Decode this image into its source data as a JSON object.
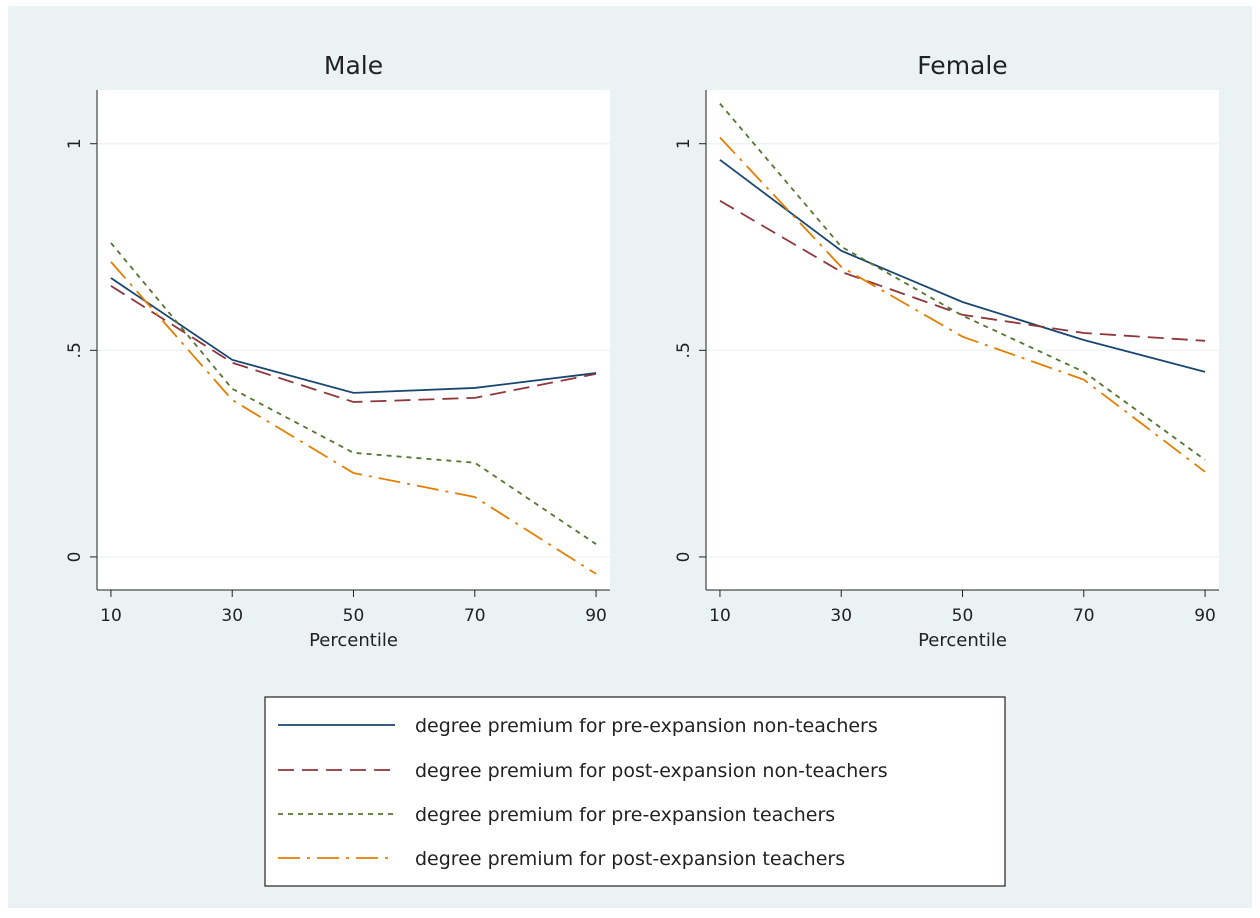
{
  "chart_data": [
    {
      "type": "line",
      "title": "Male",
      "x_label": "Percentile",
      "x": [
        10,
        30,
        50,
        70,
        90
      ],
      "xlim": [
        7.7,
        92.3
      ],
      "xticks": [
        10,
        30,
        50,
        70,
        90
      ],
      "ylim": [
        -0.08,
        1.13
      ],
      "yticks": [
        0,
        {
          "value": 0.5,
          "label": ".5"
        },
        1
      ],
      "grid": true,
      "series": [
        {
          "name": "degree premium for pre-expansion non-teachers",
          "color": "#1a476f",
          "dash": "solid",
          "values": [
            0.675,
            0.477,
            0.397,
            0.409,
            0.445
          ]
        },
        {
          "name": "degree premium for post-expansion non-teachers",
          "color": "#90353b",
          "dash": "longdash",
          "values": [
            0.656,
            0.47,
            0.375,
            0.385,
            0.443
          ]
        },
        {
          "name": "degree premium for pre-expansion teachers",
          "color": "#55752f",
          "dash": "shortdash",
          "values": [
            0.76,
            0.407,
            0.252,
            0.228,
            0.031
          ]
        },
        {
          "name": "degree premium for post-expansion teachers",
          "color": "#e37e00",
          "dash": "longdashdot",
          "values": [
            0.714,
            0.38,
            0.203,
            0.145,
            -0.041
          ]
        }
      ]
    },
    {
      "type": "line",
      "title": "Female",
      "x_label": "Percentile",
      "x": [
        10,
        30,
        50,
        70,
        90
      ],
      "xlim": [
        7.7,
        92.3
      ],
      "xticks": [
        10,
        30,
        50,
        70,
        90
      ],
      "ylim": [
        -0.08,
        1.13
      ],
      "yticks": [
        0,
        {
          "value": 0.5,
          "label": ".5"
        },
        1
      ],
      "grid": true,
      "series": [
        {
          "name": "degree premium for pre-expansion non-teachers",
          "color": "#1a476f",
          "dash": "solid",
          "values": [
            0.961,
            0.741,
            0.617,
            0.525,
            0.448
          ]
        },
        {
          "name": "degree premium for post-expansion non-teachers",
          "color": "#90353b",
          "dash": "longdash",
          "values": [
            0.862,
            0.69,
            0.586,
            0.542,
            0.523
          ]
        },
        {
          "name": "degree premium for pre-expansion teachers",
          "color": "#55752f",
          "dash": "shortdash",
          "values": [
            1.097,
            0.751,
            0.584,
            0.448,
            0.235
          ]
        },
        {
          "name": "degree premium for post-expansion teachers",
          "color": "#e37e00",
          "dash": "longdashdot",
          "values": [
            1.015,
            0.702,
            0.533,
            0.429,
            0.206
          ]
        }
      ]
    }
  ]
}
